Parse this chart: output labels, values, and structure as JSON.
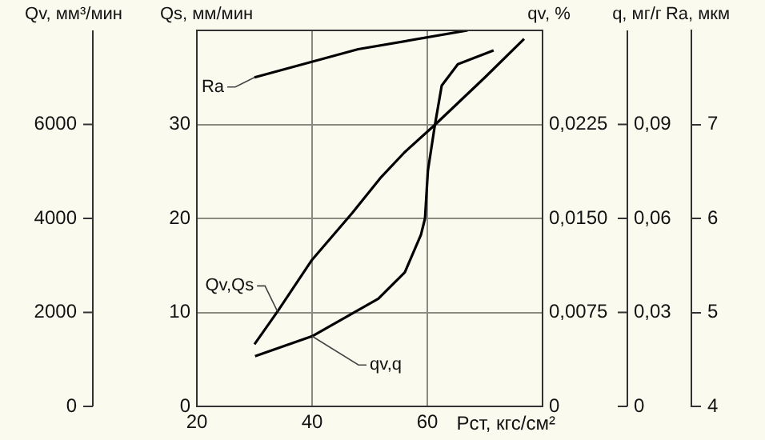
{
  "chart_data": {
    "type": "line",
    "xlabel": "Pст, кгс/см²",
    "ylabel": "Qs, мм/мин",
    "y2label": "qv, %",
    "y3label": "Ra, мкм",
    "annotations": [
      "Qv, мм³/мин",
      "0",
      "2000",
      "4000",
      "6000",
      "q, мг/г",
      "0",
      "0,03",
      "0,06",
      "0,09"
    ],
    "xlim": [
      20,
      80
    ],
    "xticks": [
      20,
      40,
      60
    ],
    "ylim": [
      0,
      40
    ],
    "yticks": [
      0,
      10,
      20,
      30
    ],
    "y2lim": [
      0,
      0.03
    ],
    "y2ticks": [
      0,
      {
        "value": 0.0075,
        "label": "0,0075"
      },
      {
        "value": 0.015,
        "label": "0,0150"
      },
      {
        "value": 0.0225,
        "label": "0,0225"
      }
    ],
    "y3lim": [
      4,
      8
    ],
    "y3ticks": [
      4,
      5,
      6,
      7
    ],
    "grid": true,
    "legend": false,
    "marker": "none",
    "series": [
      {
        "name": "Qv,Qs",
        "color": "#000000",
        "x": [
          30,
          34,
          40,
          47,
          52,
          56,
          61.4,
          70,
          76.8
        ],
        "values": [
          6.6,
          10.1,
          15.6,
          20.6,
          24.4,
          27,
          30,
          35,
          39.1
        ]
      },
      {
        "name": "qv,q",
        "color": "#000000",
        "axis": "y2",
        "x": [
          30.1,
          40,
          51.5,
          56.1,
          58.9,
          59.6,
          60.1,
          61.3,
          62.5,
          65.3,
          71.5
        ],
        "values": [
          0.004,
          0.0056,
          0.0086,
          0.0107,
          0.0137,
          0.015,
          0.0188,
          0.0224,
          0.0256,
          0.0273,
          0.0284
        ]
      },
      {
        "name": "Ra",
        "color": "#000000",
        "axis": "y3",
        "x": [
          30,
          48,
          67
        ],
        "values": [
          7.5,
          7.8,
          8.0
        ]
      }
    ]
  }
}
